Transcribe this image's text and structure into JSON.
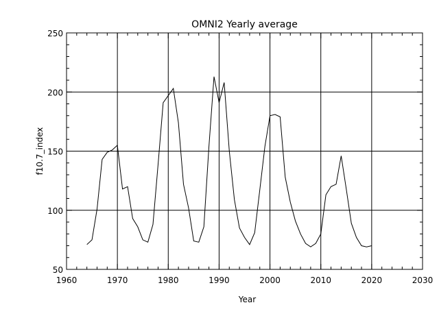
{
  "chart_data": {
    "type": "line",
    "title": "OMNI2 Yearly average",
    "xlabel": "Year",
    "ylabel": "f10.7_index",
    "xlim": [
      1960,
      2030
    ],
    "ylim": [
      50,
      250
    ],
    "xticks": [
      1960,
      1970,
      1980,
      1990,
      2000,
      2010,
      2020,
      2030
    ],
    "yticks": [
      50,
      100,
      150,
      200,
      250
    ],
    "grid": true,
    "series": [
      {
        "x": [
          1964,
          1965,
          1966,
          1967,
          1968,
          1969,
          1970,
          1971,
          1972,
          1973,
          1974,
          1975,
          1976,
          1977,
          1978,
          1979,
          1980,
          1981,
          1982,
          1983,
          1984,
          1985,
          1986,
          1987,
          1988,
          1989,
          1990,
          1991,
          1992,
          1993,
          1994,
          1995,
          1996,
          1997,
          1998,
          1999,
          2000,
          2001,
          2002,
          2003,
          2004,
          2005,
          2006,
          2007,
          2008,
          2009,
          2010,
          2011,
          2012,
          2013,
          2014,
          2015,
          2016,
          2017,
          2018,
          2019,
          2020
        ],
        "y": [
          71,
          75,
          101,
          143,
          149,
          151,
          155,
          118,
          120,
          93,
          86,
          75,
          73,
          88,
          139,
          191,
          197,
          203,
          174,
          122,
          102,
          74,
          73,
          86,
          154,
          213,
          191,
          208,
          150,
          109,
          85,
          77,
          71,
          81,
          117,
          154,
          180,
          181,
          179,
          128,
          107,
          91,
          80,
          72,
          69,
          72,
          80,
          113,
          120,
          122,
          146,
          118,
          89,
          77,
          70,
          69,
          70
        ]
      }
    ]
  }
}
